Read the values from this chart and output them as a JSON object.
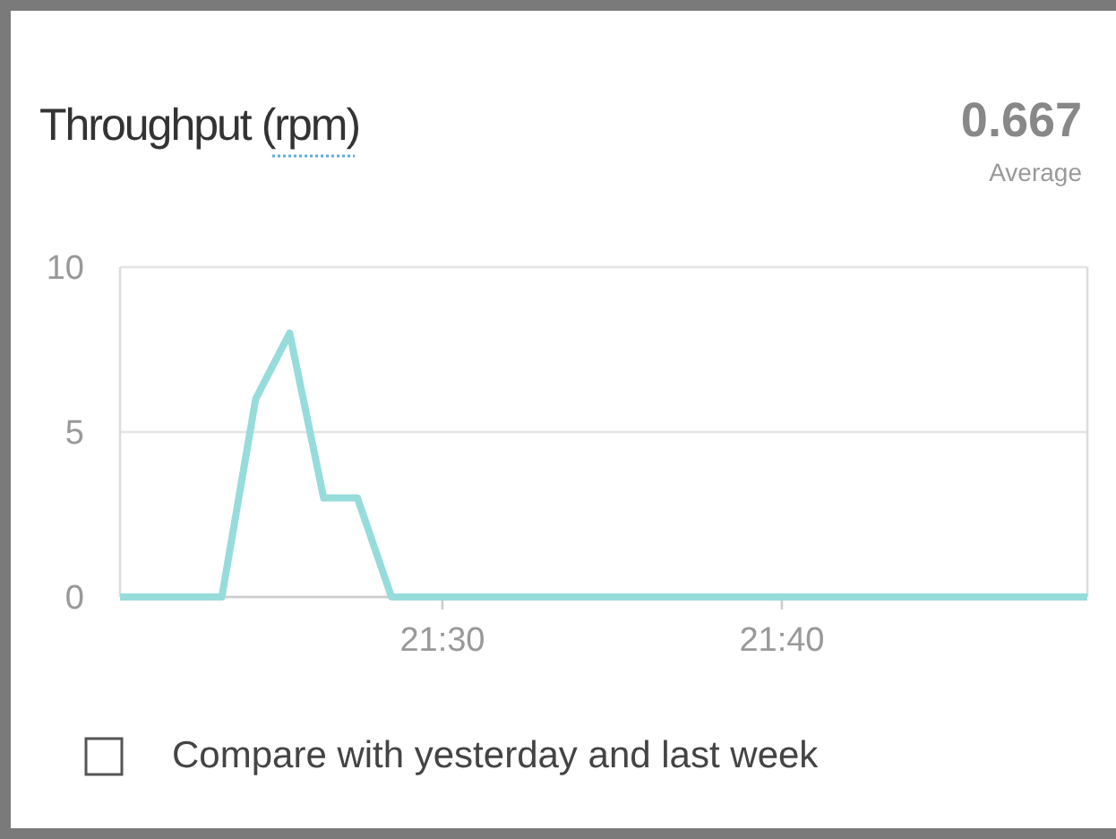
{
  "chart_data": {
    "type": "line",
    "title": "Throughput (rpm)",
    "annotations": [
      "0.667",
      "Average",
      "Compare with yesterday and last week"
    ],
    "x": [
      21.3417,
      21.3917,
      21.4083,
      21.425,
      21.4417,
      21.4583,
      21.475,
      21.8167
    ],
    "series": [
      {
        "color": "#96dcdb",
        "values": [
          0,
          0,
          6,
          8,
          3,
          3,
          0,
          0
        ]
      }
    ],
    "xlim": [
      21.3417,
      21.8167
    ],
    "xticks": [
      {
        "value": 21.5,
        "label": "21:30"
      },
      {
        "value": 21.6667,
        "label": "21:40"
      }
    ],
    "ylim": [
      0,
      10
    ],
    "yticks": [
      0,
      5,
      10
    ],
    "grid": "y",
    "marker": "none",
    "line_style": "solid"
  }
}
